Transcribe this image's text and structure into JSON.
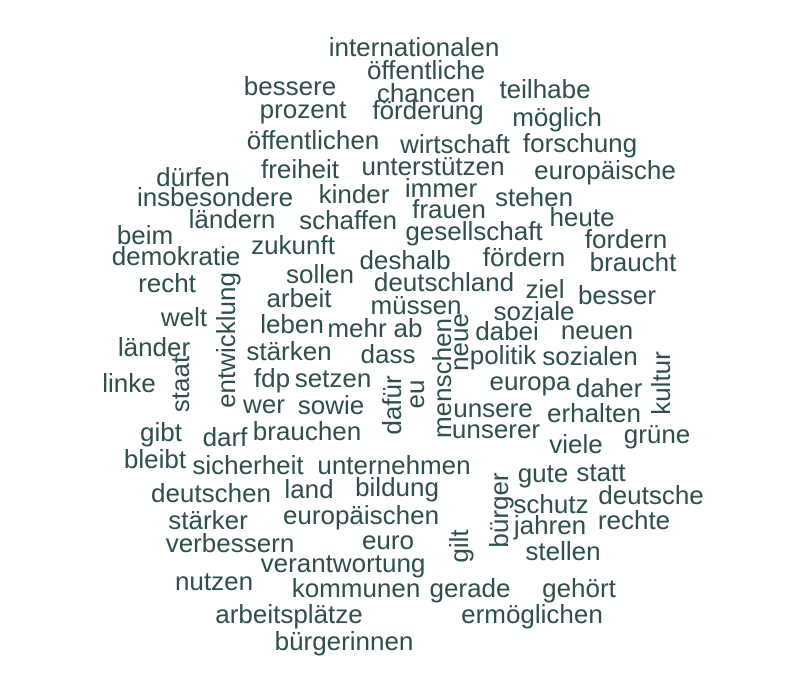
{
  "text_color": "#2f4f4f",
  "words": [
    "internationalen",
    "öffentliche",
    "bessere",
    "chancen",
    "teilhabe",
    "prozent",
    "förderung",
    "möglich",
    "öffentlichen",
    "wirtschaft",
    "forschung",
    "dürfen",
    "freiheit",
    "unterstützen",
    "europäische",
    "insbesondere",
    "kinder",
    "immer",
    "stehen",
    "ländern",
    "schaffen",
    "frauen",
    "heute",
    "beim",
    "gesellschaft",
    "fordern",
    "zukunft",
    "demokratie",
    "deshalb",
    "fördern",
    "braucht",
    "recht",
    "sollen",
    "deutschland",
    "ziel",
    "besser",
    "arbeit",
    "entwicklung",
    "welt",
    "müssen",
    "soziale",
    "leben",
    "mehr",
    "ab",
    "menschen",
    "neue",
    "dabei",
    "neuen",
    "länder",
    "stärken",
    "dass",
    "politik",
    "sozialen",
    "kultur",
    "staat",
    "linke",
    "fdp",
    "setzen",
    "europa",
    "daher",
    "dafür",
    "eu",
    "wer",
    "sowie",
    "unsere",
    "erhalten",
    "gibt",
    "darf",
    "brauchen",
    "unserer",
    "grüne",
    "viele",
    "bleibt",
    "sicherheit",
    "unternehmen",
    "gute",
    "statt",
    "deutschen",
    "land",
    "bildung",
    "bürger",
    "schutz",
    "deutsche",
    "stärker",
    "europäischen",
    "jahren",
    "rechte",
    "gilt",
    "verbessern",
    "euro",
    "stellen",
    "verantwortung",
    "nutzen",
    "kommunen",
    "gerade",
    "gehört",
    "arbeitsplätze",
    "ermöglichen",
    "bürgerinnen"
  ]
}
